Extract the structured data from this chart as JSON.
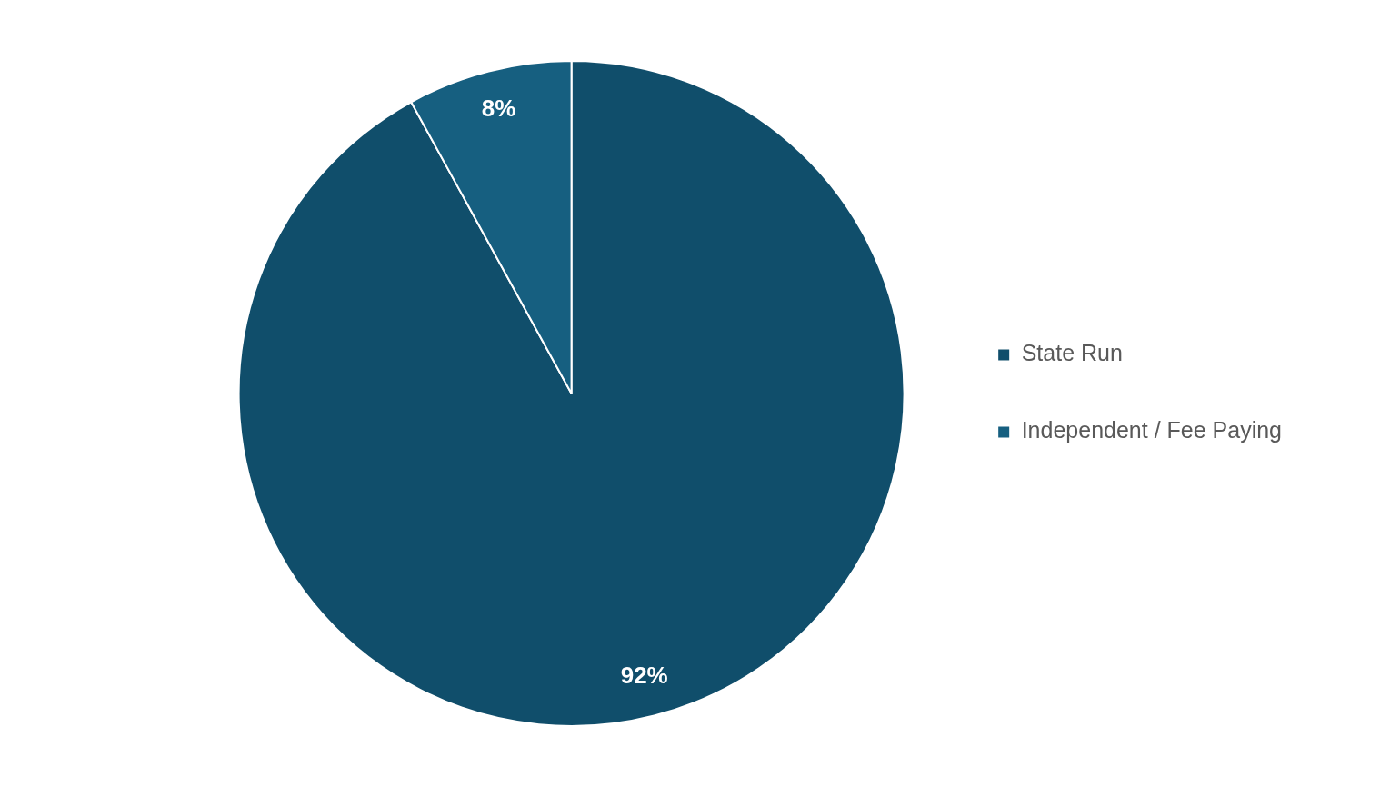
{
  "chart_data": {
    "type": "pie",
    "categories": [
      "State Run",
      "Independent / Fee Paying"
    ],
    "values": [
      92,
      8
    ],
    "colors": [
      "#104e6b",
      "#165f80"
    ],
    "value_labels": [
      "92%",
      "8%"
    ],
    "legend": "right"
  }
}
